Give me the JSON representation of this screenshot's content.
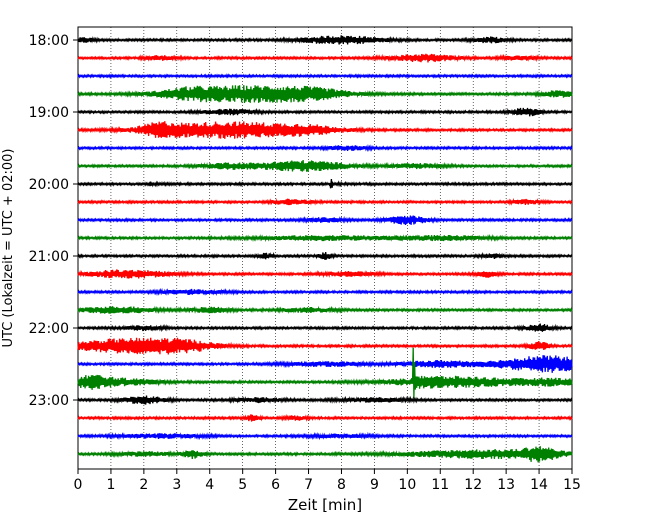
{
  "chart_data": {
    "type": "line",
    "title": "",
    "xlabel": "Zeit  [min]",
    "ylabel": "UTC (Lokalzeit = UTC + 02:00)",
    "xlim": [
      0,
      15
    ],
    "x_ticks": [
      0,
      1,
      2,
      3,
      4,
      5,
      6,
      7,
      8,
      9,
      10,
      11,
      12,
      13,
      14,
      15
    ],
    "y_tick_labels": [
      "18:00",
      "19:00",
      "20:00",
      "21:00",
      "22:00",
      "23:00"
    ],
    "grid": "vertical dotted",
    "trace_minutes": 15,
    "colors": {
      "black": "#000000",
      "red": "#ff0000",
      "blue": "#0000ff",
      "green": "#008000"
    },
    "series": [
      {
        "start": "18:00",
        "color": "black",
        "events": [
          {
            "t": 8.0,
            "a": 4,
            "w": 1.2
          },
          {
            "t": 12.5,
            "a": 2.5,
            "w": 0.5
          },
          {
            "t": 0.2,
            "a": 2,
            "w": 0.3
          }
        ]
      },
      {
        "start": "18:15",
        "color": "red",
        "events": [
          {
            "t": 10.5,
            "a": 3.5,
            "w": 1.0
          },
          {
            "t": 2.5,
            "a": 2,
            "w": 0.5
          },
          {
            "t": 13.4,
            "a": 2,
            "w": 0.5
          }
        ]
      },
      {
        "start": "18:30",
        "color": "blue",
        "events": []
      },
      {
        "start": "18:45",
        "color": "green",
        "events": [
          {
            "t": 5.2,
            "a": 8,
            "w": 2.2
          },
          {
            "t": 3.3,
            "a": 3,
            "w": 0.8
          },
          {
            "t": 7.2,
            "a": 3,
            "w": 1.0
          },
          {
            "t": 14.6,
            "a": 3,
            "w": 0.5
          }
        ]
      },
      {
        "start": "19:00",
        "color": "black",
        "events": [
          {
            "t": 13.6,
            "a": 4,
            "w": 0.4
          },
          {
            "t": 4.6,
            "a": 2.5,
            "w": 0.8
          }
        ]
      },
      {
        "start": "19:15",
        "color": "red",
        "events": [
          {
            "t": 4.6,
            "a": 8,
            "w": 2.2
          },
          {
            "t": 2.5,
            "a": 5,
            "w": 0.6
          },
          {
            "t": 7.0,
            "a": 3,
            "w": 1.0
          }
        ]
      },
      {
        "start": "19:30",
        "color": "blue",
        "events": [
          {
            "t": 8.2,
            "a": 2,
            "w": 0.6
          }
        ]
      },
      {
        "start": "19:45",
        "color": "green",
        "events": [
          {
            "t": 6.8,
            "a": 5,
            "w": 1.4
          },
          {
            "t": 4.5,
            "a": 2.5,
            "w": 0.8
          },
          {
            "t": 10.3,
            "a": 2,
            "w": 0.8
          }
        ]
      },
      {
        "start": "20:00",
        "color": "black",
        "events": [
          {
            "t": 7.7,
            "a": 4,
            "w": 0.15
          },
          {
            "t": 2.2,
            "a": 2.5,
            "w": 0.15
          }
        ]
      },
      {
        "start": "20:15",
        "color": "red",
        "events": [
          {
            "t": 6.5,
            "a": 2.5,
            "w": 0.6
          },
          {
            "t": 13.6,
            "a": 2,
            "w": 0.4
          }
        ]
      },
      {
        "start": "20:30",
        "color": "blue",
        "events": [
          {
            "t": 10.0,
            "a": 4,
            "w": 0.6
          },
          {
            "t": 7.5,
            "a": 2,
            "w": 0.6
          }
        ]
      },
      {
        "start": "20:45",
        "color": "green",
        "events": [
          {
            "t": 7.5,
            "a": 2,
            "w": 2.0
          },
          {
            "t": 11.0,
            "a": 2,
            "w": 1.5
          }
        ]
      },
      {
        "start": "21:00",
        "color": "black",
        "events": [
          {
            "t": 7.5,
            "a": 3,
            "w": 0.2
          },
          {
            "t": 5.7,
            "a": 2.5,
            "w": 0.2
          },
          {
            "t": 12.6,
            "a": 2,
            "w": 0.3
          }
        ]
      },
      {
        "start": "21:15",
        "color": "red",
        "events": [
          {
            "t": 1.5,
            "a": 4,
            "w": 1.2
          },
          {
            "t": 12.4,
            "a": 3,
            "w": 0.3
          },
          {
            "t": 8.2,
            "a": 2,
            "w": 0.8
          }
        ]
      },
      {
        "start": "21:30",
        "color": "blue",
        "events": [
          {
            "t": 3.5,
            "a": 2,
            "w": 1.0
          }
        ]
      },
      {
        "start": "21:45",
        "color": "green",
        "events": [
          {
            "t": 1.2,
            "a": 3,
            "w": 1.2
          },
          {
            "t": 4.0,
            "a": 2.5,
            "w": 0.6
          },
          {
            "t": 7.0,
            "a": 2,
            "w": 0.8
          }
        ]
      },
      {
        "start": "22:00",
        "color": "black",
        "events": [
          {
            "t": 14.0,
            "a": 3.5,
            "w": 0.4
          },
          {
            "t": 2.0,
            "a": 2,
            "w": 0.6
          }
        ]
      },
      {
        "start": "22:15",
        "color": "red",
        "events": [
          {
            "t": 1.5,
            "a": 7,
            "w": 1.8
          },
          {
            "t": 3.2,
            "a": 4,
            "w": 1.0
          },
          {
            "t": 14.0,
            "a": 4,
            "w": 0.3
          }
        ]
      },
      {
        "start": "22:30",
        "color": "blue",
        "events": [
          {
            "t": 14.2,
            "a": 8,
            "w": 1.4
          },
          {
            "t": 11.0,
            "a": 3,
            "w": 1.2
          },
          {
            "t": 7.5,
            "a": 2,
            "w": 1.2
          }
        ]
      },
      {
        "start": "22:45",
        "color": "green",
        "events": [
          {
            "t": 10.2,
            "a": 30,
            "w": 0.1
          },
          {
            "t": 11.5,
            "a": 5,
            "w": 2.0
          },
          {
            "t": 0.4,
            "a": 6,
            "w": 0.6
          },
          {
            "t": 1.5,
            "a": 3,
            "w": 1.0
          },
          {
            "t": 14.5,
            "a": 3,
            "w": 1.0
          }
        ]
      },
      {
        "start": "23:00",
        "color": "black",
        "events": [
          {
            "t": 2.0,
            "a": 4,
            "w": 0.6
          },
          {
            "t": 5.5,
            "a": 2,
            "w": 0.8
          },
          {
            "t": 9.0,
            "a": 2,
            "w": 1.0
          }
        ]
      },
      {
        "start": "23:15",
        "color": "red",
        "events": [
          {
            "t": 5.3,
            "a": 3,
            "w": 0.2
          },
          {
            "t": 6.6,
            "a": 2,
            "w": 0.3
          }
        ]
      },
      {
        "start": "23:30",
        "color": "blue",
        "events": [
          {
            "t": 2.5,
            "a": 2,
            "w": 1.2
          },
          {
            "t": 8.0,
            "a": 1.5,
            "w": 1.0
          }
        ]
      },
      {
        "start": "23:45",
        "color": "green",
        "events": [
          {
            "t": 3.5,
            "a": 4,
            "w": 0.3
          },
          {
            "t": 12.5,
            "a": 4,
            "w": 2.5
          },
          {
            "t": 14.0,
            "a": 5,
            "w": 0.5
          },
          {
            "t": 2.0,
            "a": 2,
            "w": 0.8
          }
        ]
      }
    ]
  }
}
